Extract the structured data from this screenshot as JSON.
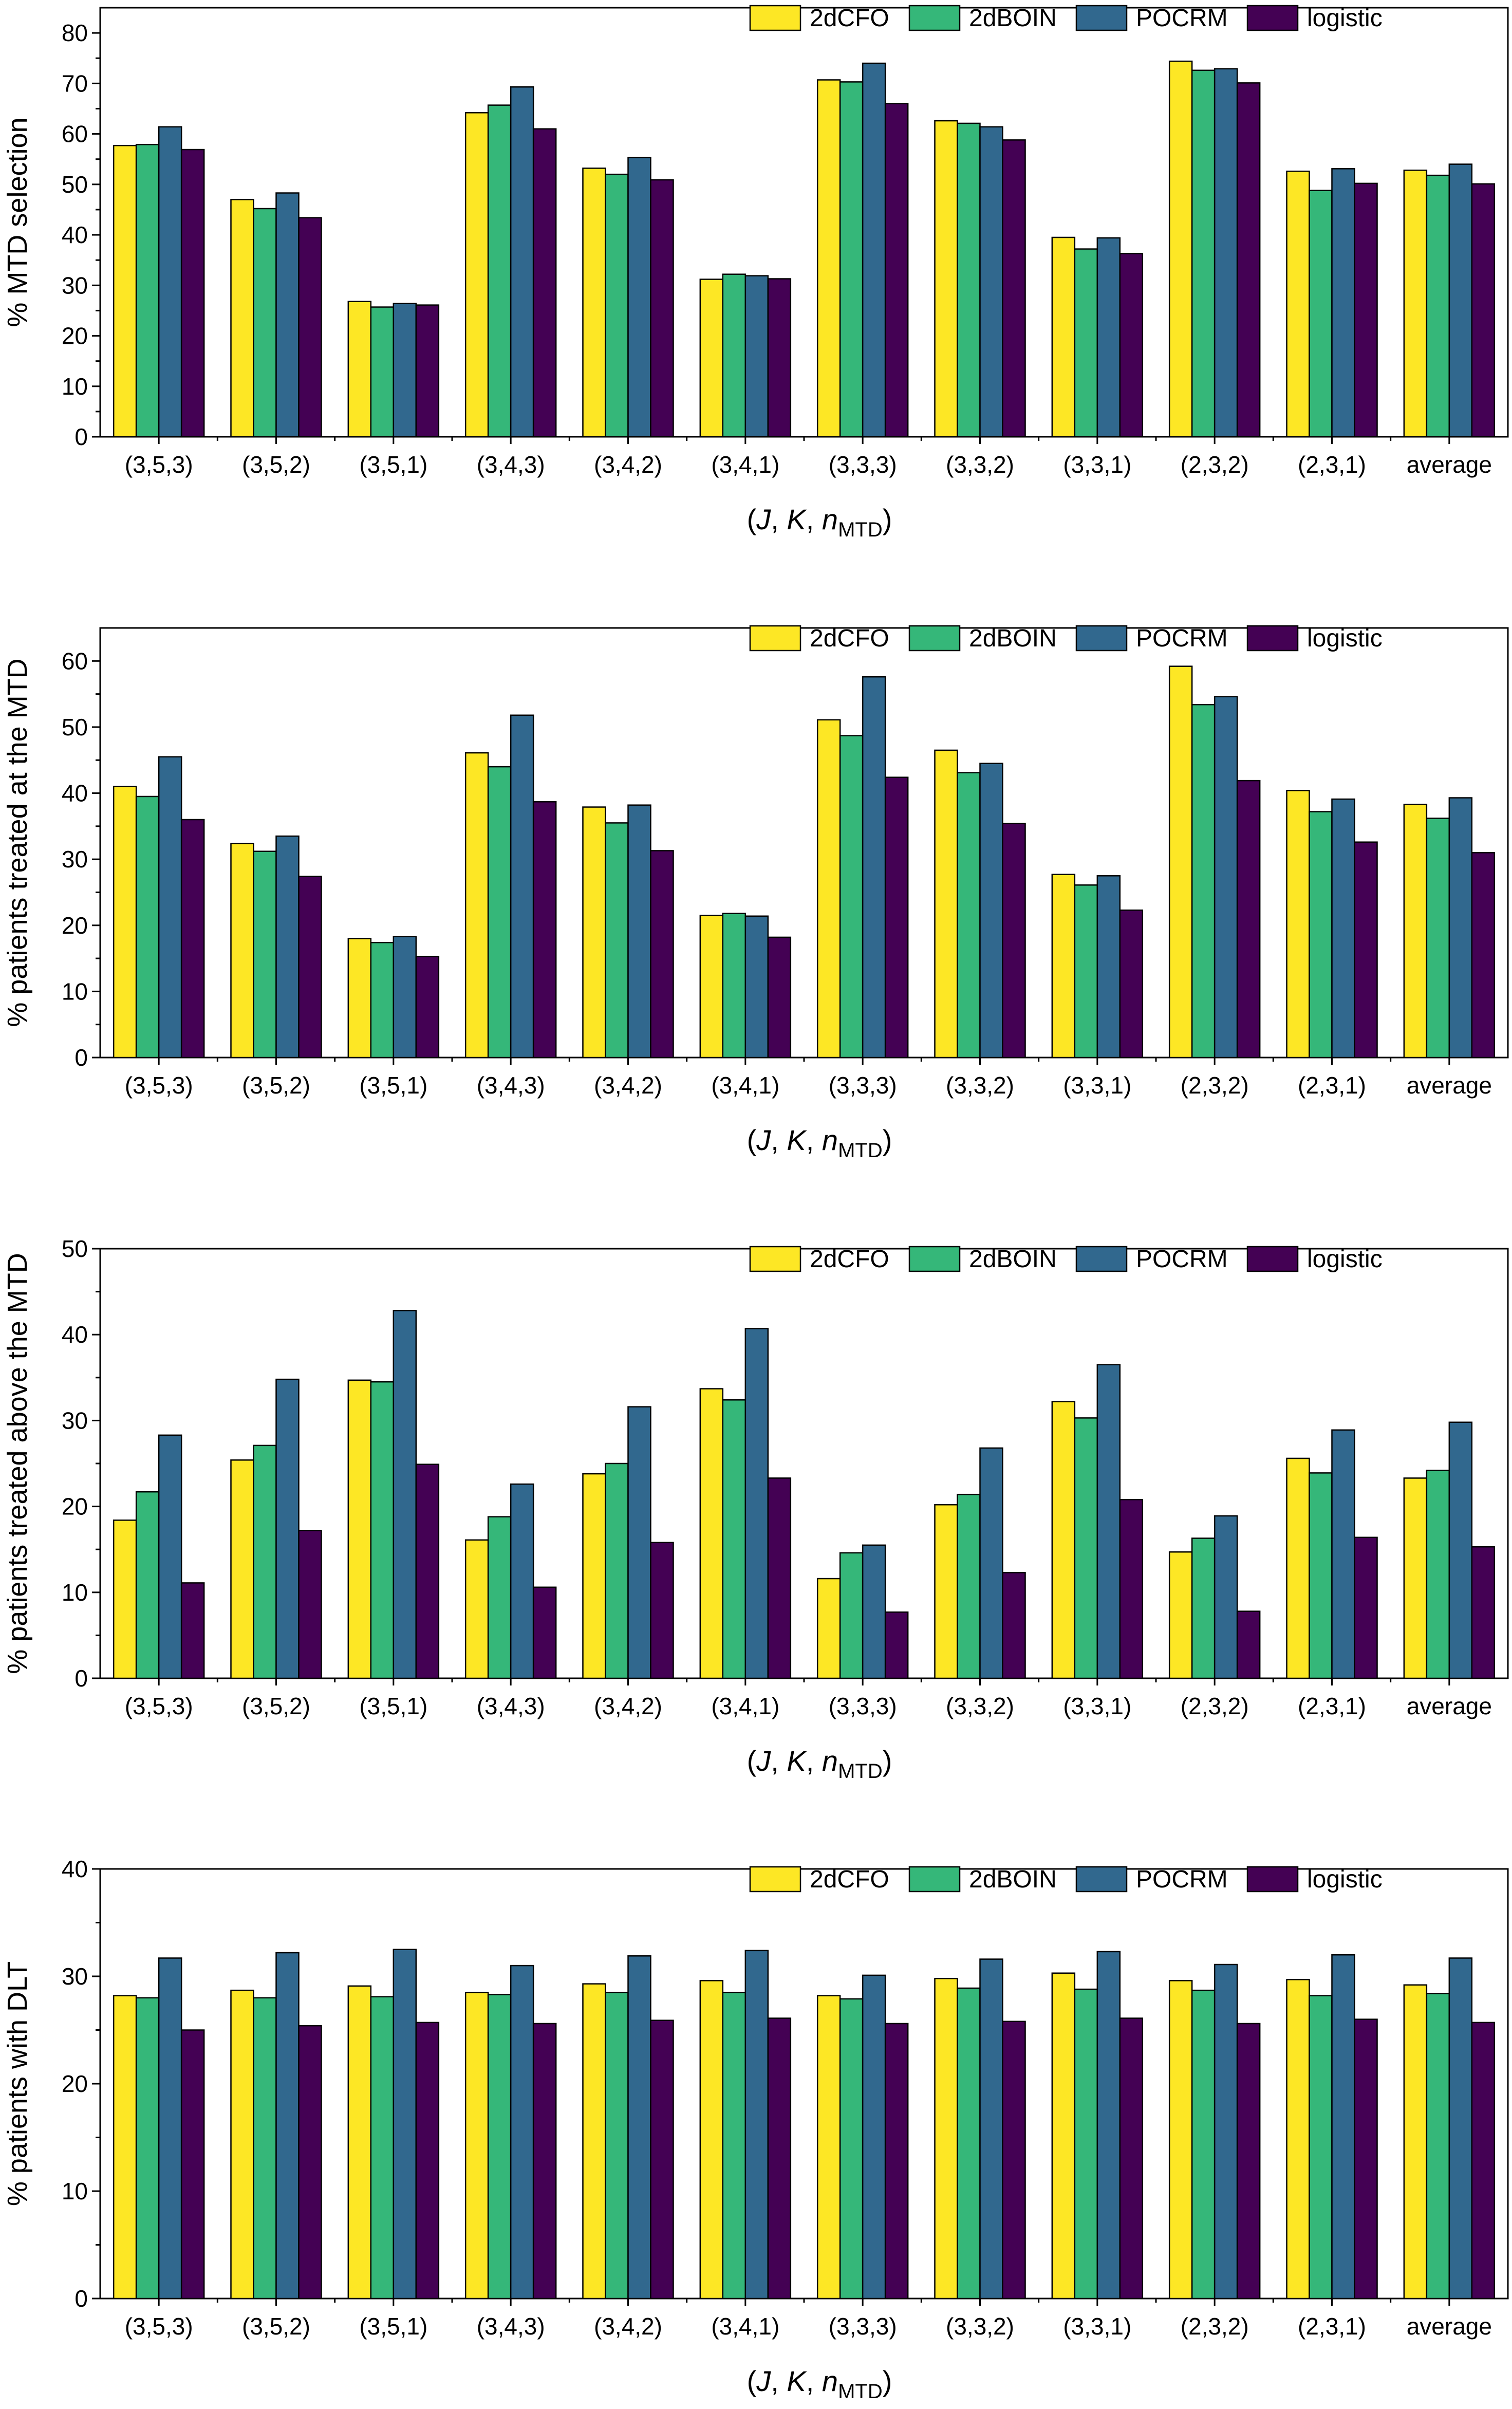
{
  "colors": {
    "2dCFO": "#FDE725",
    "2dBOIN": "#35B779",
    "POCRM": "#31688E",
    "logistic": "#440154"
  },
  "chart_data": [
    {
      "type": "bar",
      "title": "",
      "ylabel": "% MTD selection",
      "xlabel": "(J, K, n_MTD)",
      "ylim": [
        0,
        85
      ],
      "yticks": [
        0,
        10,
        20,
        30,
        40,
        50,
        60,
        70,
        80
      ],
      "legend": "top-right",
      "categories": [
        "(3,5,3)",
        "(3,5,2)",
        "(3,5,1)",
        "(3,4,3)",
        "(3,4,2)",
        "(3,4,1)",
        "(3,3,3)",
        "(3,3,2)",
        "(3,3,1)",
        "(2,3,2)",
        "(2,3,1)",
        "average"
      ],
      "series": [
        {
          "name": "2dCFO",
          "values": [
            57.7,
            47.0,
            26.8,
            64.2,
            53.2,
            31.2,
            70.7,
            62.6,
            39.5,
            74.4,
            52.6,
            52.8
          ]
        },
        {
          "name": "2dBOIN",
          "values": [
            57.9,
            45.2,
            25.7,
            65.7,
            52.0,
            32.2,
            70.3,
            62.1,
            37.2,
            72.6,
            48.8,
            51.8
          ]
        },
        {
          "name": "POCRM",
          "values": [
            61.4,
            48.3,
            26.4,
            69.3,
            55.3,
            31.9,
            74.0,
            61.4,
            39.4,
            72.9,
            53.1,
            54.0
          ]
        },
        {
          "name": "logistic",
          "values": [
            56.9,
            43.4,
            26.1,
            61.0,
            50.9,
            31.3,
            66.0,
            58.8,
            36.3,
            70.1,
            50.2,
            50.1
          ]
        }
      ]
    },
    {
      "type": "bar",
      "title": "",
      "ylabel": "% patients treated at the MTD",
      "xlabel": "(J, K, n_MTD)",
      "ylim": [
        0,
        65
      ],
      "yticks": [
        0,
        10,
        20,
        30,
        40,
        50,
        60
      ],
      "legend": "top-right",
      "categories": [
        "(3,5,3)",
        "(3,5,2)",
        "(3,5,1)",
        "(3,4,3)",
        "(3,4,2)",
        "(3,4,1)",
        "(3,3,3)",
        "(3,3,2)",
        "(3,3,1)",
        "(2,3,2)",
        "(2,3,1)",
        "average"
      ],
      "series": [
        {
          "name": "2dCFO",
          "values": [
            41.0,
            32.4,
            18.0,
            46.1,
            37.9,
            21.5,
            51.1,
            46.5,
            27.7,
            59.2,
            40.4,
            38.3
          ]
        },
        {
          "name": "2dBOIN",
          "values": [
            39.5,
            31.2,
            17.4,
            44.0,
            35.5,
            21.8,
            48.7,
            43.1,
            26.1,
            53.4,
            37.2,
            36.2
          ]
        },
        {
          "name": "POCRM",
          "values": [
            45.5,
            33.5,
            18.3,
            51.8,
            38.2,
            21.4,
            57.6,
            44.5,
            27.5,
            54.6,
            39.1,
            39.3
          ]
        },
        {
          "name": "logistic",
          "values": [
            36.0,
            27.4,
            15.3,
            38.7,
            31.3,
            18.2,
            42.4,
            35.4,
            22.3,
            41.9,
            32.6,
            31.0
          ]
        }
      ]
    },
    {
      "type": "bar",
      "title": "",
      "ylabel": "% patients treated above the MTD",
      "xlabel": "(J, K, n_MTD)",
      "ylim": [
        0,
        50
      ],
      "yticks": [
        0,
        10,
        20,
        30,
        40,
        50
      ],
      "legend": "top-right",
      "categories": [
        "(3,5,3)",
        "(3,5,2)",
        "(3,5,1)",
        "(3,4,3)",
        "(3,4,2)",
        "(3,4,1)",
        "(3,3,3)",
        "(3,3,2)",
        "(3,3,1)",
        "(2,3,2)",
        "(2,3,1)",
        "average"
      ],
      "series": [
        {
          "name": "2dCFO",
          "values": [
            18.4,
            25.4,
            34.7,
            16.1,
            23.8,
            33.7,
            11.6,
            20.2,
            32.2,
            14.7,
            25.6,
            23.3
          ]
        },
        {
          "name": "2dBOIN",
          "values": [
            21.7,
            27.1,
            34.5,
            18.8,
            25.0,
            32.4,
            14.6,
            21.4,
            30.3,
            16.3,
            23.9,
            24.2
          ]
        },
        {
          "name": "POCRM",
          "values": [
            28.3,
            34.8,
            42.8,
            22.6,
            31.6,
            40.7,
            15.5,
            26.8,
            36.5,
            18.9,
            28.9,
            29.8
          ]
        },
        {
          "name": "logistic",
          "values": [
            11.1,
            17.2,
            24.9,
            10.6,
            15.8,
            23.3,
            7.7,
            12.3,
            20.8,
            7.8,
            16.4,
            15.3
          ]
        }
      ]
    },
    {
      "type": "bar",
      "title": "",
      "ylabel": "% patients with DLT",
      "xlabel": "(J, K, n_MTD)",
      "ylim": [
        0,
        40
      ],
      "yticks": [
        0,
        10,
        20,
        30,
        40
      ],
      "legend": "top-right",
      "categories": [
        "(3,5,3)",
        "(3,5,2)",
        "(3,5,1)",
        "(3,4,3)",
        "(3,4,2)",
        "(3,4,1)",
        "(3,3,3)",
        "(3,3,2)",
        "(3,3,1)",
        "(2,3,2)",
        "(2,3,1)",
        "average"
      ],
      "series": [
        {
          "name": "2dCFO",
          "values": [
            28.2,
            28.7,
            29.1,
            28.5,
            29.3,
            29.6,
            28.2,
            29.8,
            30.3,
            29.6,
            29.7,
            29.2
          ]
        },
        {
          "name": "2dBOIN",
          "values": [
            28.0,
            28.0,
            28.1,
            28.3,
            28.5,
            28.5,
            27.9,
            28.9,
            28.8,
            28.7,
            28.2,
            28.4
          ]
        },
        {
          "name": "POCRM",
          "values": [
            31.7,
            32.2,
            32.5,
            31.0,
            31.9,
            32.4,
            30.1,
            31.6,
            32.3,
            31.1,
            32.0,
            31.7
          ]
        },
        {
          "name": "logistic",
          "values": [
            25.0,
            25.4,
            25.7,
            25.6,
            25.9,
            26.1,
            25.6,
            25.8,
            26.1,
            25.6,
            26.0,
            25.7
          ]
        }
      ]
    }
  ]
}
